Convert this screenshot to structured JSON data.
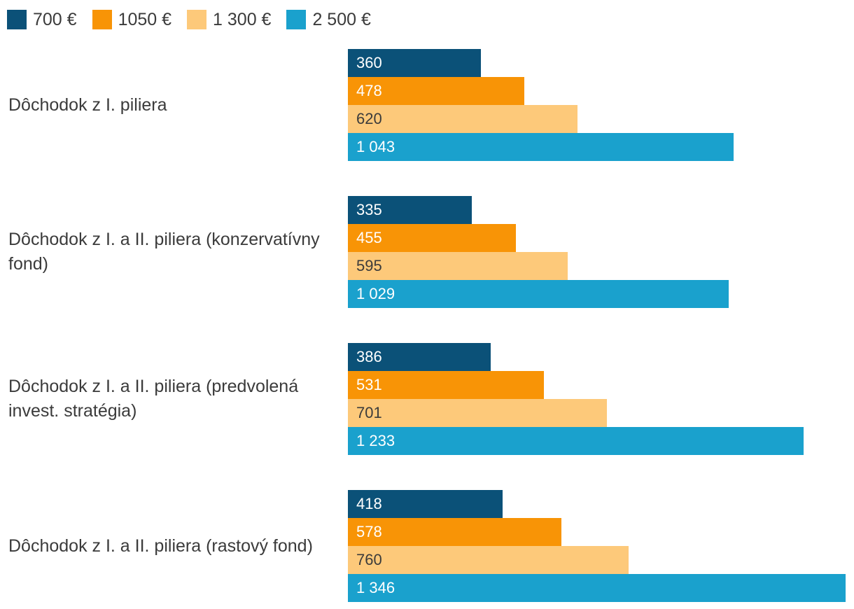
{
  "colors": {
    "text": "#3b3b3b",
    "background": "#ffffff"
  },
  "chart_data": {
    "type": "bar",
    "orientation": "horizontal",
    "title": "",
    "xlabel": "",
    "ylabel": "",
    "grid": false,
    "legend_position": "top",
    "xmax": 1346,
    "categories": [
      "Dôchodok z I. piliera",
      "Dôchodok z I. a II. piliera (konzervatívny fond)",
      "Dôchodok z I. a II. piliera (predvolená invest. stratégia)",
      "Dôchodok z I. a II. piliera (rastový fond)"
    ],
    "series": [
      {
        "name": "700 €",
        "color": "#0b5178",
        "label_color": "#ffffff",
        "values": [
          360,
          335,
          386,
          418
        ],
        "display": [
          "360",
          "335",
          "386",
          "418"
        ]
      },
      {
        "name": "1050 €",
        "color": "#f89406",
        "label_color": "#ffffff",
        "values": [
          478,
          455,
          531,
          578
        ],
        "display": [
          "478",
          "455",
          "531",
          "578"
        ]
      },
      {
        "name": "1 300 €",
        "color": "#fdc97a",
        "label_color": "#3b3b3b",
        "values": [
          620,
          595,
          701,
          760
        ],
        "display": [
          "620",
          "595",
          "701",
          "760"
        ]
      },
      {
        "name": "2 500 €",
        "color": "#1aa1cd",
        "label_color": "#ffffff",
        "values": [
          1043,
          1029,
          1233,
          1346
        ],
        "display": [
          "1 043",
          "1 029",
          "1 233",
          "1 346"
        ]
      }
    ]
  }
}
